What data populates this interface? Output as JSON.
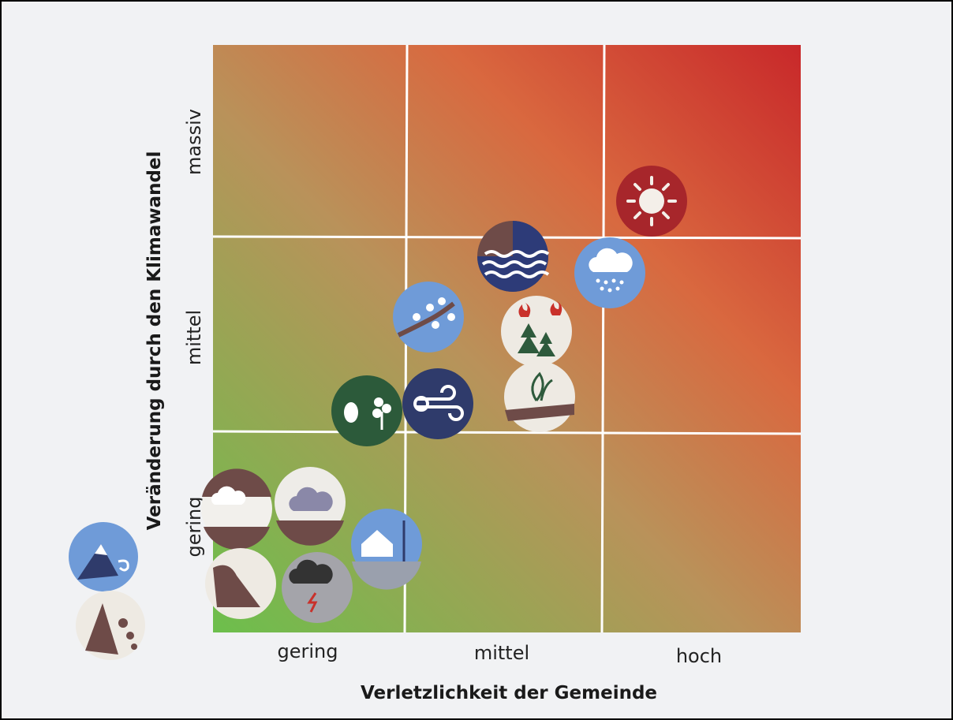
{
  "matrix": {
    "y_axis": {
      "title": "Veränderung durch den Klimawandel",
      "levels": [
        "gering",
        "mittel",
        "massiv"
      ]
    },
    "x_axis": {
      "title": "Verletzlichkeit der Gemeinde",
      "levels": [
        "gering",
        "mittel",
        "hoch"
      ]
    }
  }
}
